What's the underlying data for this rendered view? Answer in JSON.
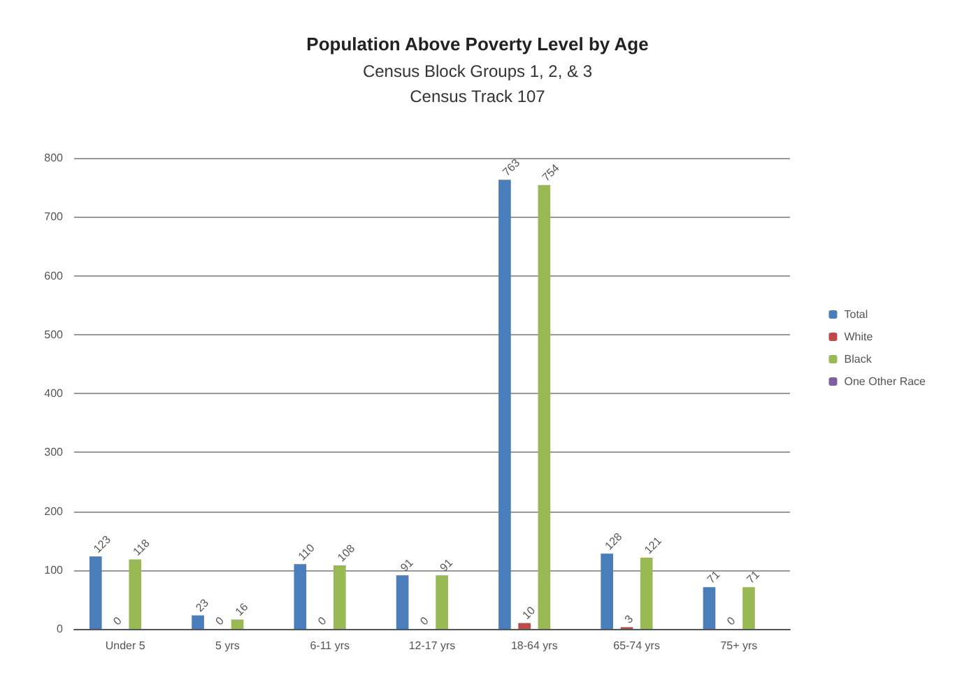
{
  "chart_data": {
    "type": "bar",
    "title": "Population Above Poverty Level by Age",
    "subtitle": "Census Block Groups 1, 2, & 3\nCensus Track 107",
    "categories": [
      "Under 5",
      "5 yrs",
      "6-11 yrs",
      "12-17 yrs",
      "18-64 yrs",
      "65-74 yrs",
      "75+ yrs"
    ],
    "series": [
      {
        "name": "Total",
        "color": "#4a7ebb",
        "values": [
          123,
          23,
          110,
          91,
          763,
          128,
          71
        ],
        "value_labels": [
          "123",
          "23",
          "110",
          "91",
          "763",
          "128",
          "71"
        ]
      },
      {
        "name": "White",
        "color": "#be4b48",
        "values": [
          0,
          0,
          0,
          0,
          10,
          3,
          0
        ],
        "value_labels": [
          "0",
          "0",
          "0",
          "0",
          "10",
          "3",
          "0"
        ]
      },
      {
        "name": "Black",
        "color": "#98b954",
        "values": [
          118,
          16,
          108,
          91,
          754,
          121,
          71
        ],
        "value_labels": [
          "118",
          "16",
          "108",
          "91",
          "754",
          "121",
          "71"
        ]
      },
      {
        "name": "One Other Race",
        "color": "#7d60a0",
        "values": [
          0,
          0,
          0,
          0,
          0,
          0,
          0
        ]
      }
    ],
    "ylim": [
      0,
      800
    ],
    "yticks": [
      0,
      100,
      200,
      300,
      400,
      500,
      600,
      700,
      800
    ],
    "grid": "y",
    "legend": "right"
  }
}
